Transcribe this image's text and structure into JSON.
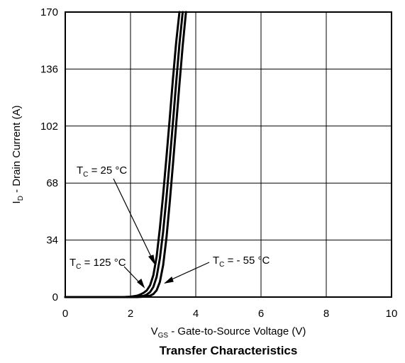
{
  "chart_data": {
    "type": "line",
    "title": "Transfer Characteristics",
    "xlabel": {
      "main": "V",
      "sub": "GS",
      "rest": " - Gate-to-Source Voltage (V)"
    },
    "ylabel": {
      "main": "I",
      "sub": "D",
      "rest": " - Drain Current (A)"
    },
    "xlim": [
      0,
      10
    ],
    "ylim": [
      0,
      170
    ],
    "xticks": [
      0,
      2,
      4,
      6,
      8,
      10
    ],
    "yticks": [
      0,
      34,
      68,
      102,
      136,
      170
    ],
    "grid": true,
    "series": [
      {
        "name": "TC = 125 °C",
        "x": [
          0,
          1.8,
          2.0,
          2.2,
          2.3,
          2.4,
          2.5,
          2.6,
          2.7,
          2.8,
          2.9,
          3.0,
          3.1,
          3.2,
          3.3,
          3.4,
          3.5
        ],
        "y": [
          0,
          0,
          0.2,
          0.8,
          1.5,
          2.5,
          4,
          7,
          13,
          24,
          41,
          61,
          83,
          106,
          130,
          152,
          170
        ]
      },
      {
        "name": "TC = 25 °C",
        "x": [
          0,
          2.0,
          2.2,
          2.4,
          2.5,
          2.6,
          2.7,
          2.8,
          2.9,
          3.0,
          3.1,
          3.2,
          3.3,
          3.4,
          3.5,
          3.6
        ],
        "y": [
          0,
          0,
          0.2,
          0.7,
          1.5,
          3,
          6,
          12,
          23,
          39,
          59,
          81,
          104,
          128,
          151,
          170
        ]
      },
      {
        "name": "TC = - 55 °C",
        "x": [
          0,
          2.2,
          2.4,
          2.6,
          2.7,
          2.8,
          2.9,
          3.0,
          3.1,
          3.2,
          3.3,
          3.4,
          3.5,
          3.6,
          3.7
        ],
        "y": [
          0,
          0,
          0.2,
          0.8,
          1.8,
          4,
          9,
          19,
          35,
          56,
          79,
          103,
          127,
          150,
          170
        ]
      }
    ],
    "annotations": [
      {
        "base": "T",
        "sub": "C",
        "text": " = 25 °C"
      },
      {
        "base": "T",
        "sub": "C",
        "text": " = 125 °C"
      },
      {
        "base": "T",
        "sub": "C",
        "text": " = - 55 °C"
      }
    ]
  }
}
